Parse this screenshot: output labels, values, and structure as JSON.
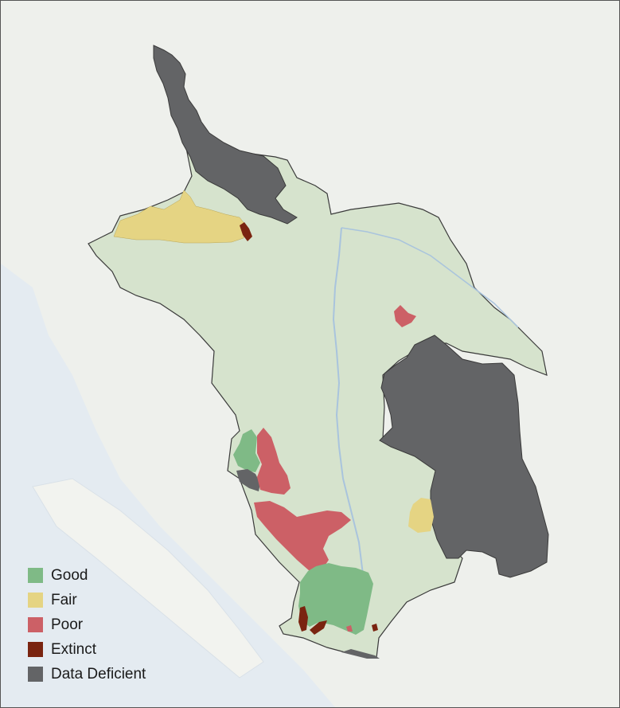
{
  "legend": {
    "items": [
      {
        "label": "Good",
        "color": "#7fba86"
      },
      {
        "label": "Fair",
        "color": "#e5d483"
      },
      {
        "label": "Poor",
        "color": "#cc6066"
      },
      {
        "label": "Extinct",
        "color": "#7a2410"
      },
      {
        "label": "Data Deficient",
        "color": "#636466"
      }
    ]
  },
  "colors": {
    "basin": "#d6e3cd",
    "basin_outline": "#3a3a3a",
    "background": "#eef0ec",
    "water": "#dfe8f2",
    "river": "#a9c4dd"
  }
}
